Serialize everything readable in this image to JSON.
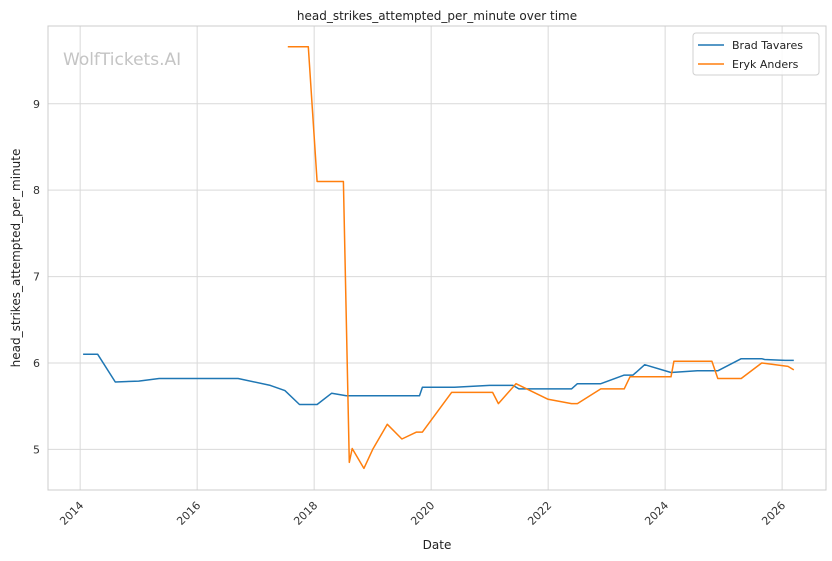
{
  "chart_data": {
    "type": "line",
    "title": "head_strikes_attempted_per_minute over time",
    "xlabel": "Date",
    "ylabel": "head_strikes_attempted_per_minute",
    "watermark": "WolfTickets.AI",
    "x_ticks": [
      "2014",
      "2016",
      "2018",
      "2020",
      "2022",
      "2024",
      "2026"
    ],
    "y_ticks": [
      "5",
      "6",
      "7",
      "8",
      "9"
    ],
    "xlim": [
      2013.45,
      2026.75
    ],
    "ylim": [
      4.53,
      9.9
    ],
    "grid": true,
    "legend_position": "top-right",
    "series": [
      {
        "name": "Brad Tavares",
        "color": "#1f77b4",
        "x": [
          2014.05,
          2014.3,
          2014.6,
          2015.0,
          2015.35,
          2016.0,
          2016.7,
          2017.25,
          2017.5,
          2017.75,
          2018.05,
          2018.3,
          2018.55,
          2019.0,
          2019.5,
          2019.8,
          2019.85,
          2020.4,
          2021.0,
          2021.4,
          2021.5,
          2022.0,
          2022.4,
          2022.5,
          2022.9,
          2023.3,
          2023.45,
          2023.65,
          2024.1,
          2024.55,
          2024.9,
          2025.3,
          2025.65,
          2025.7,
          2026.05,
          2026.2
        ],
        "y": [
          6.1,
          6.1,
          5.78,
          5.79,
          5.82,
          5.82,
          5.82,
          5.74,
          5.68,
          5.52,
          5.52,
          5.65,
          5.62,
          5.62,
          5.62,
          5.62,
          5.72,
          5.72,
          5.74,
          5.74,
          5.7,
          5.7,
          5.7,
          5.76,
          5.76,
          5.86,
          5.86,
          5.98,
          5.89,
          5.91,
          5.91,
          6.05,
          6.05,
          6.04,
          6.03,
          6.03
        ]
      },
      {
        "name": "Eryk Anders",
        "color": "#ff7f0e",
        "x": [
          2017.55,
          2017.9,
          2018.05,
          2018.5,
          2018.6,
          2018.65,
          2018.85,
          2019.0,
          2019.25,
          2019.5,
          2019.75,
          2019.85,
          2020.35,
          2021.05,
          2021.15,
          2021.45,
          2022.0,
          2022.4,
          2022.5,
          2022.9,
          2023.3,
          2023.4,
          2024.1,
          2024.15,
          2024.8,
          2024.9,
          2025.3,
          2025.65,
          2026.1,
          2026.2
        ],
        "y": [
          9.66,
          9.66,
          8.1,
          8.1,
          4.85,
          5.01,
          4.78,
          5.0,
          5.29,
          5.12,
          5.2,
          5.2,
          5.66,
          5.66,
          5.53,
          5.76,
          5.58,
          5.53,
          5.53,
          5.7,
          5.7,
          5.84,
          5.84,
          6.02,
          6.02,
          5.82,
          5.82,
          6.0,
          5.96,
          5.92
        ]
      }
    ]
  }
}
